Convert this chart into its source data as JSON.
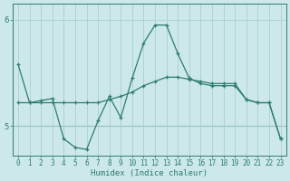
{
  "xlabel": "Humidex (Indice chaleur)",
  "background_color": "#cde8e8",
  "line_color": "#2e7d6e",
  "grid_color": "#aacfcf",
  "xlim": [
    -0.5,
    23.5
  ],
  "ylim": [
    4.72,
    6.15
  ],
  "yticks": [
    5,
    6
  ],
  "xticks": [
    0,
    1,
    2,
    3,
    4,
    5,
    6,
    7,
    8,
    9,
    10,
    11,
    12,
    13,
    14,
    15,
    16,
    17,
    18,
    19,
    20,
    21,
    22,
    23
  ],
  "hline_y": 5.0,
  "line1_x": [
    0,
    1,
    2,
    3,
    4,
    5,
    6,
    7,
    8,
    9,
    10,
    11,
    12,
    13,
    14,
    15,
    16,
    17,
    18,
    19,
    20,
    21,
    22,
    23
  ],
  "line1_y": [
    5.58,
    5.22,
    5.24,
    5.26,
    4.88,
    4.8,
    4.78,
    5.05,
    5.28,
    5.08,
    5.45,
    5.78,
    5.95,
    5.95,
    5.68,
    5.45,
    5.4,
    5.38,
    5.38,
    5.38,
    5.25,
    5.22,
    5.22,
    4.88
  ],
  "line2_x": [
    0,
    1,
    2,
    3,
    4,
    5,
    6,
    7,
    8,
    9,
    10,
    11,
    12,
    13,
    14,
    15,
    16,
    17,
    18,
    19,
    20,
    21,
    22,
    23
  ],
  "line2_y": [
    5.22,
    5.22,
    5.22,
    5.22,
    5.22,
    5.22,
    5.22,
    5.22,
    5.25,
    5.28,
    5.32,
    5.38,
    5.42,
    5.46,
    5.46,
    5.44,
    5.42,
    5.4,
    5.4,
    5.4,
    5.25,
    5.22,
    5.22,
    4.88
  ]
}
